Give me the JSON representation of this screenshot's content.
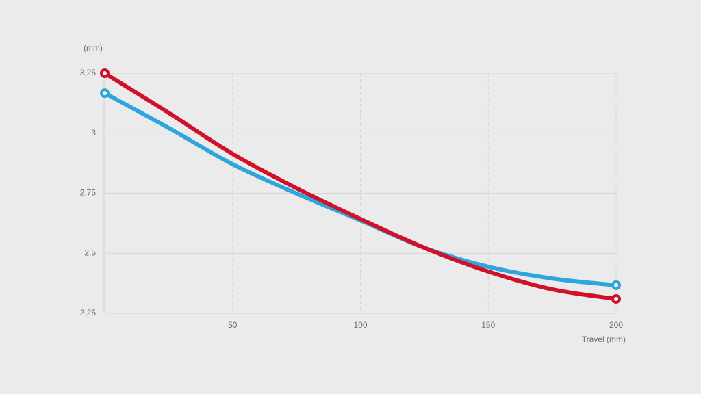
{
  "chart_data": {
    "type": "line",
    "y_label": "(mm)",
    "x_label": "Travel (mm)",
    "x": [
      0,
      25,
      50,
      75,
      100,
      125,
      150,
      175,
      200
    ],
    "xlim": [
      0,
      200
    ],
    "xticks": [
      50,
      100,
      150,
      200
    ],
    "ylim": [
      2.25,
      3.25
    ],
    "yticks": [
      {
        "value": 2.25,
        "label": "2,25"
      },
      {
        "value": 2.5,
        "label": "2,5"
      },
      {
        "value": 2.75,
        "label": "2,75"
      },
      3,
      {
        "value": 3.25,
        "label": "3,25"
      }
    ],
    "grid": true,
    "series": [
      {
        "color": "#2ea6dc",
        "values": [
          3.167,
          3.022,
          2.871,
          2.749,
          2.637,
          2.523,
          2.444,
          2.395,
          2.367
        ]
      },
      {
        "color": "#d0112b",
        "values": [
          3.25,
          3.085,
          2.914,
          2.771,
          2.643,
          2.523,
          2.424,
          2.35,
          2.31
        ]
      }
    ]
  }
}
